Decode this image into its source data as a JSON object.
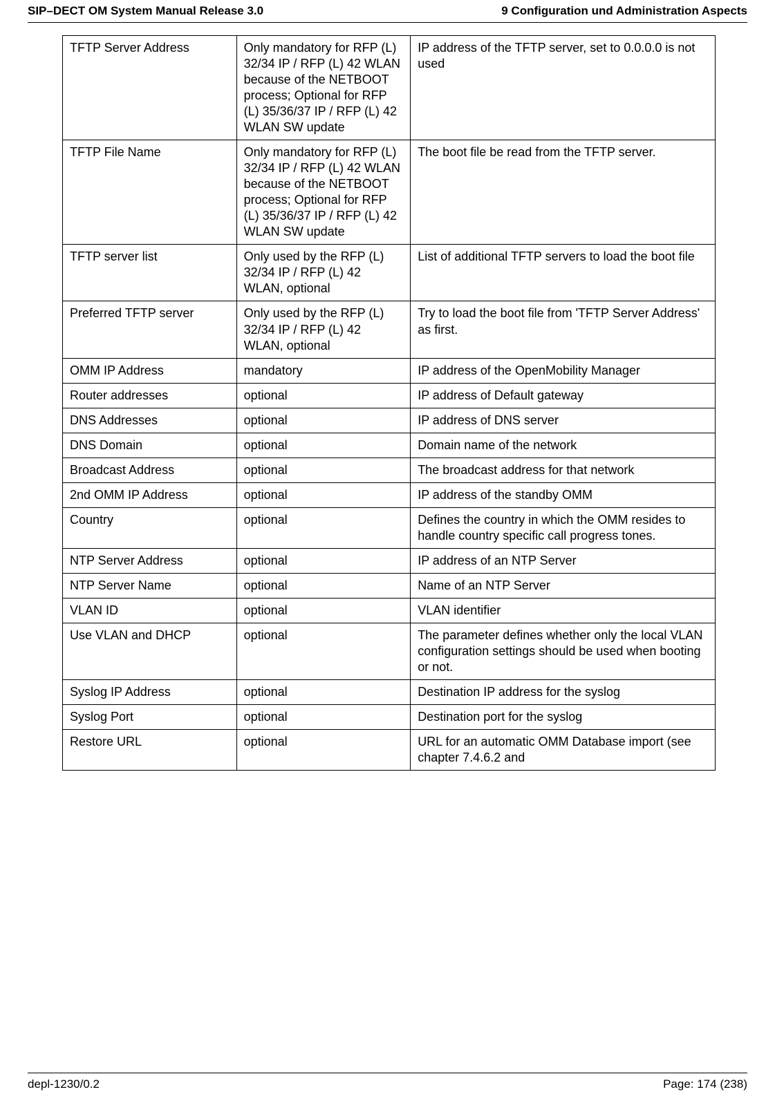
{
  "header": {
    "left": "SIP–DECT OM System Manual Release 3.0",
    "right": "9 Configuration und Administration Aspects"
  },
  "table": {
    "rows": [
      {
        "c1": "TFTP Server Address",
        "c2": "Only mandatory for RFP (L) 32/34 IP / RFP (L) 42 WLAN because of the NETBOOT process; Optional for RFP (L) 35/36/37 IP / RFP (L) 42 WLAN SW update",
        "c3": "IP address of the TFTP server, set to 0.0.0.0 is not used"
      },
      {
        "c1": "TFTP File Name",
        "c2": "Only mandatory for RFP (L) 32/34 IP / RFP (L) 42 WLAN because of the NETBOOT process; Optional for RFP (L) 35/36/37 IP / RFP (L) 42 WLAN SW update",
        "c3": "The boot file be read from the TFTP server."
      },
      {
        "c1": "TFTP server list",
        "c2": "Only used by the RFP (L) 32/34 IP / RFP (L) 42 WLAN, optional",
        "c3": "List of additional TFTP servers to load the boot file"
      },
      {
        "c1": "Preferred TFTP server",
        "c2": "Only used by the RFP (L) 32/34 IP / RFP (L) 42 WLAN, optional",
        "c3": "Try to load the boot file from 'TFTP Server Address' as first."
      },
      {
        "c1": "OMM IP Address",
        "c2": "mandatory",
        "c3": "IP address of the OpenMobility Manager"
      },
      {
        "c1": "Router addresses",
        "c2": "optional",
        "c3": "IP address of Default gateway"
      },
      {
        "c1": "DNS Addresses",
        "c2": "optional",
        "c3": "IP address of DNS server"
      },
      {
        "c1": "DNS Domain",
        "c2": "optional",
        "c3": "Domain name of the network"
      },
      {
        "c1": "Broadcast Address",
        "c2": "optional",
        "c3": "The broadcast address for that network"
      },
      {
        "c1": "2nd OMM IP Address",
        "c2": "optional",
        "c3": "IP address of the standby OMM"
      },
      {
        "c1": "Country",
        "c2": "optional",
        "c3": "Defines the country in which the OMM resides to handle country specific call progress tones."
      },
      {
        "c1": "NTP Server Address",
        "c2": "optional",
        "c3": "IP address of an NTP Server"
      },
      {
        "c1": "NTP Server Name",
        "c2": "optional",
        "c3": "Name of an NTP Server"
      },
      {
        "c1": "VLAN ID",
        "c2": "optional",
        "c3": "VLAN identifier"
      },
      {
        "c1": "Use VLAN and DHCP",
        "c2": "optional",
        "c3": "The parameter defines whether only the local VLAN configuration settings should be used when booting or not."
      },
      {
        "c1": "Syslog IP Address",
        "c2": "optional",
        "c3": "Destination IP address for the syslog"
      },
      {
        "c1": "Syslog Port",
        "c2": "optional",
        "c3": "Destination port for the syslog"
      },
      {
        "c1": "Restore URL",
        "c2": "optional",
        "c3": "URL for an automatic OMM Database import (see chapter 7.4.6.2 and"
      }
    ]
  },
  "footer": {
    "left": "depl-1230/0.2",
    "right": "Page: 174 (238)"
  }
}
